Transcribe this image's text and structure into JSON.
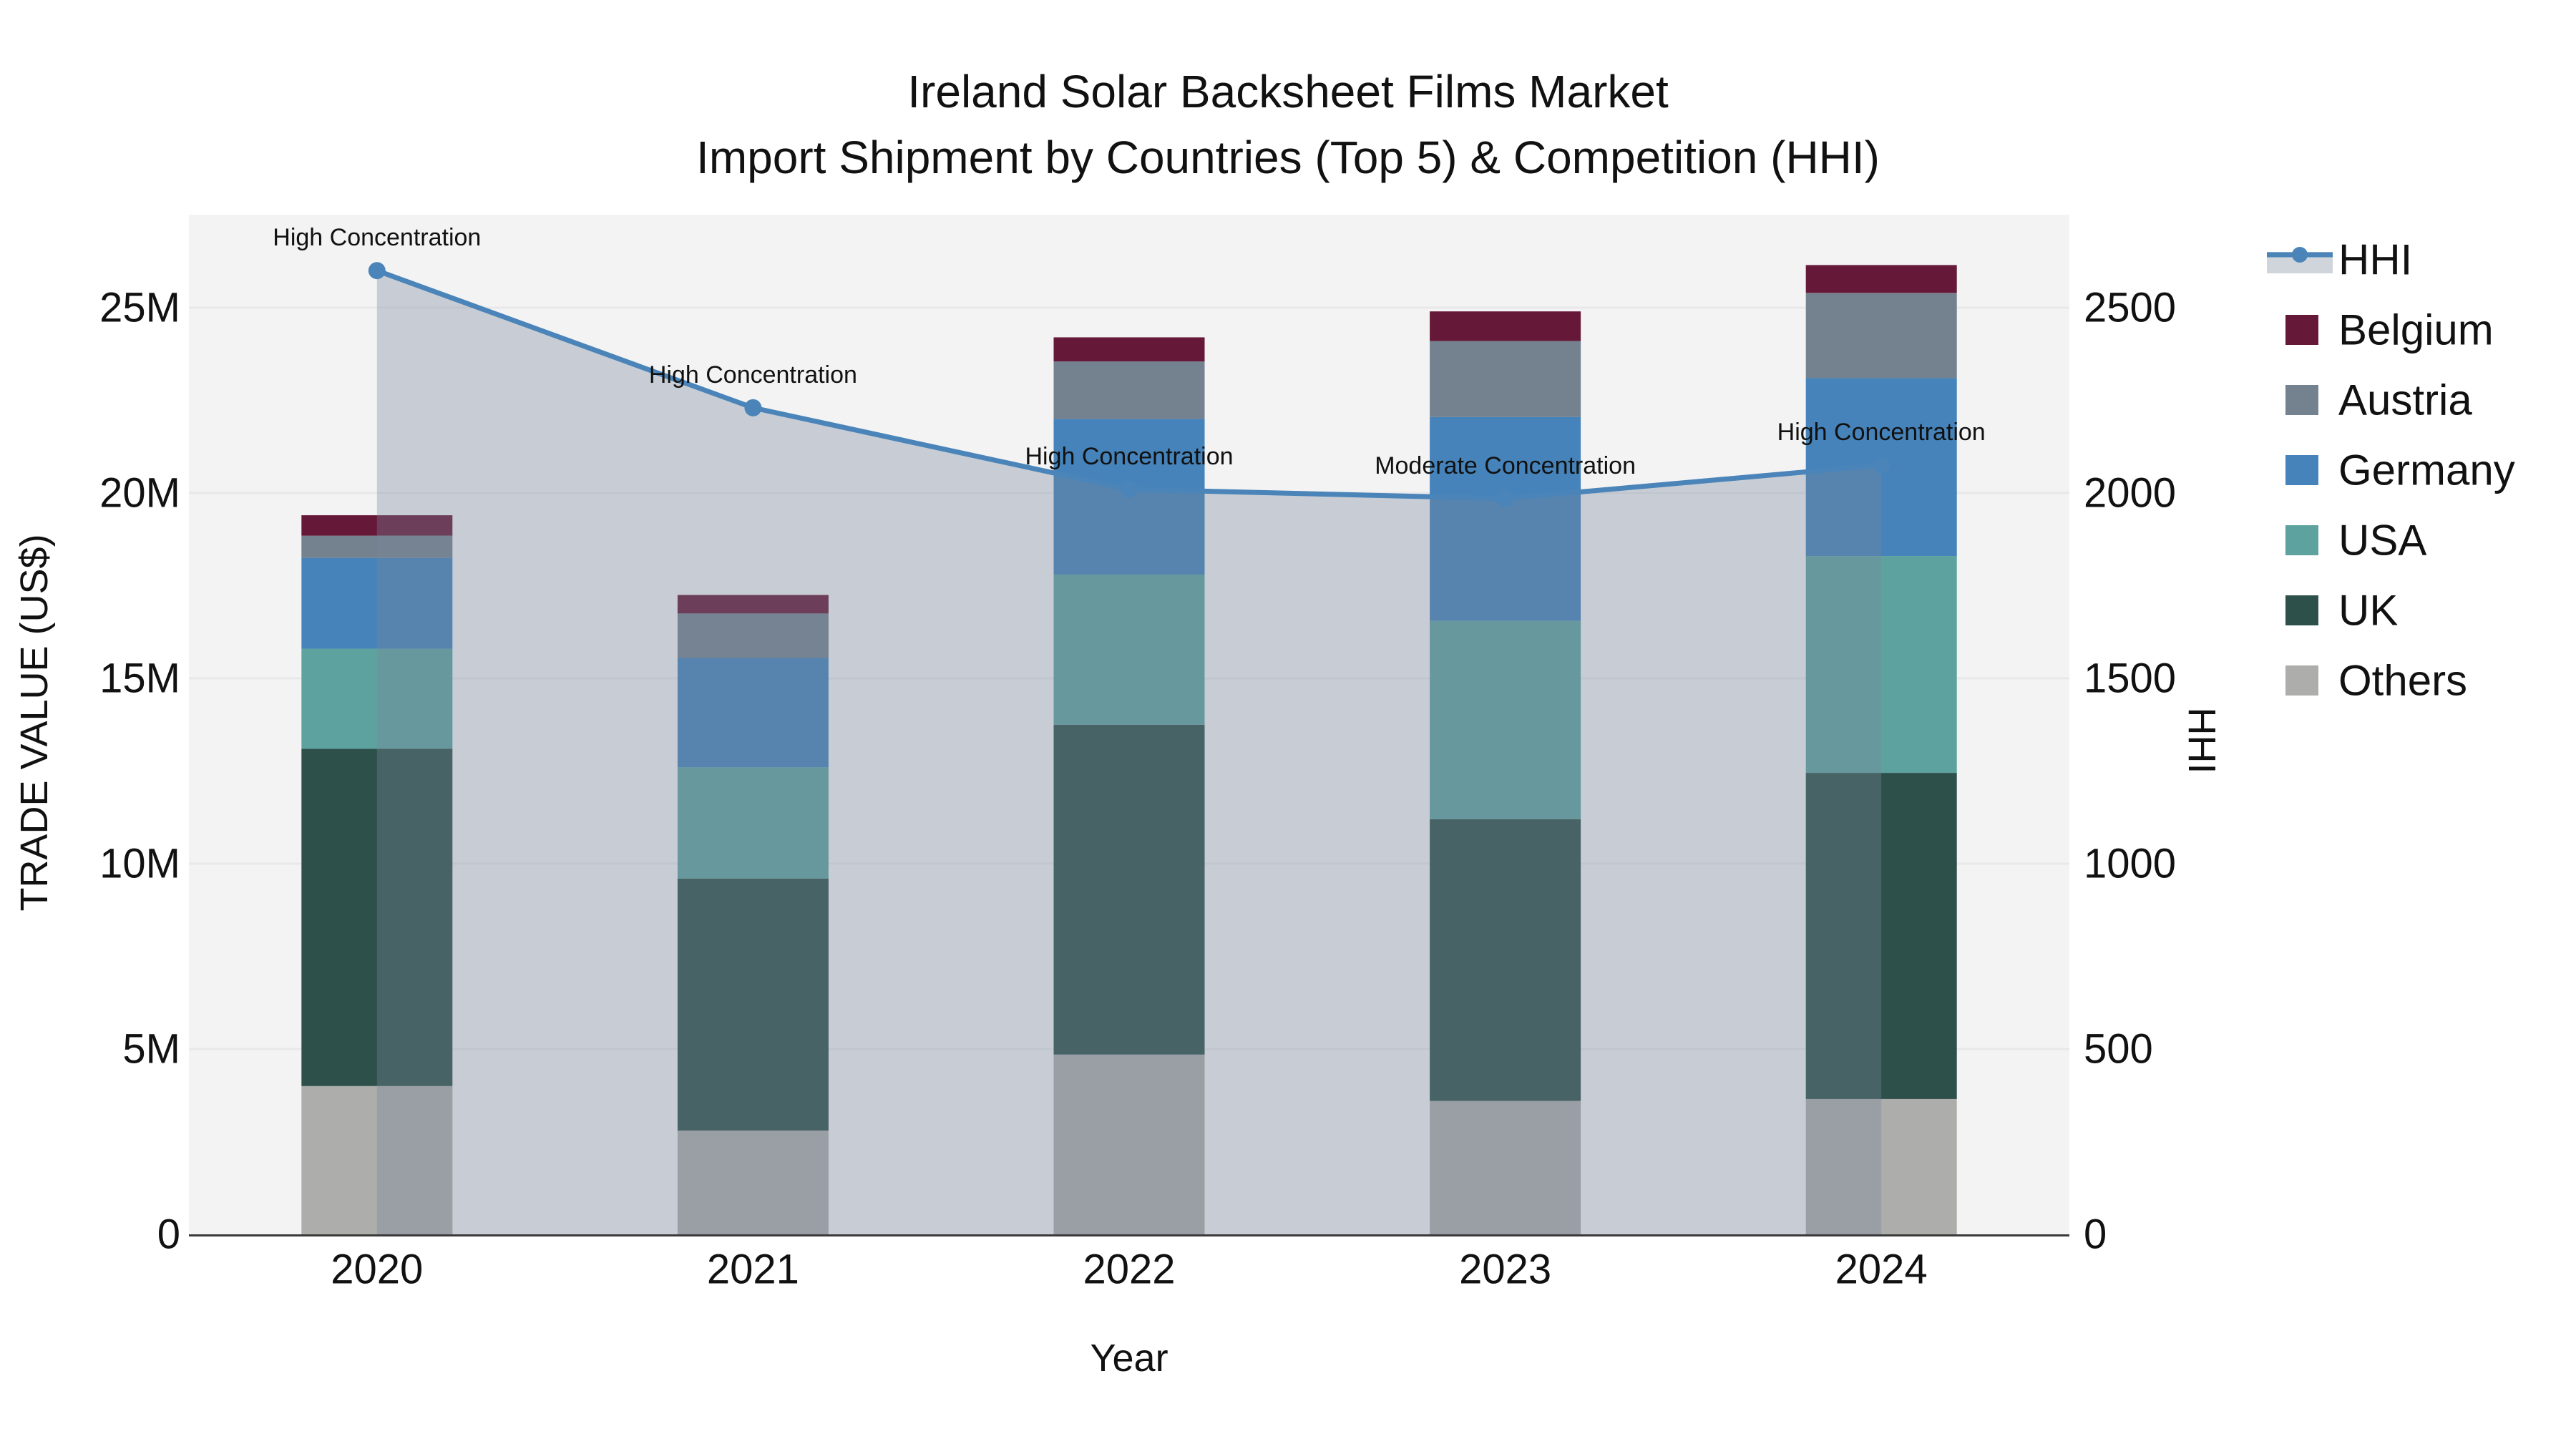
{
  "title": {
    "line1": "Ireland Solar Backsheet Films Market",
    "line2": "Import Shipment by Countries (Top 5) & Competition (HHI)"
  },
  "axes": {
    "x": {
      "label": "Year",
      "categories": [
        "2020",
        "2021",
        "2022",
        "2023",
        "2024"
      ]
    },
    "y_left": {
      "label": "TRADE VALUE (US$)",
      "ticks": [
        {
          "v": 0,
          "t": "0"
        },
        {
          "v": 5,
          "t": "5M"
        },
        {
          "v": 10,
          "t": "10M"
        },
        {
          "v": 15,
          "t": "15M"
        },
        {
          "v": 20,
          "t": "20M"
        },
        {
          "v": 25,
          "t": "25M"
        }
      ],
      "range": [
        0,
        27.5
      ]
    },
    "y_right": {
      "label": "HHI",
      "ticks": [
        {
          "v": 0,
          "t": "0"
        },
        {
          "v": 500,
          "t": "500"
        },
        {
          "v": 1000,
          "t": "1000"
        },
        {
          "v": 1500,
          "t": "1500"
        },
        {
          "v": 2000,
          "t": "2000"
        },
        {
          "v": 2500,
          "t": "2500"
        }
      ],
      "range": [
        0,
        2750
      ]
    }
  },
  "legend": {
    "items": [
      {
        "label": "HHI",
        "type": "line",
        "color": "#4a84b8"
      },
      {
        "label": "Belgium",
        "type": "swatch",
        "color": "#661838"
      },
      {
        "label": "Austria",
        "type": "swatch",
        "color": "#74818f"
      },
      {
        "label": "Germany",
        "type": "swatch",
        "color": "#4583ba"
      },
      {
        "label": "USA",
        "type": "swatch",
        "color": "#5da29e"
      },
      {
        "label": "UK",
        "type": "swatch",
        "color": "#2e504b"
      },
      {
        "label": "Others",
        "type": "swatch",
        "color": "#adadab"
      }
    ]
  },
  "chart_data": {
    "type": "combo: stacked-bar + line",
    "title": "Ireland Solar Backsheet Films Market — Import Shipment by Countries (Top 5) & Competition (HHI)",
    "categories": [
      "2020",
      "2021",
      "2022",
      "2023",
      "2024"
    ],
    "value_unit": "US$ millions (left axis), HHI index (right axis)",
    "series": [
      {
        "name": "Others",
        "color": "#adadab",
        "values": [
          4.0,
          2.8,
          4.85,
          3.6,
          3.65
        ]
      },
      {
        "name": "UK",
        "color": "#2e504b",
        "values": [
          9.1,
          6.8,
          8.9,
          7.6,
          8.8
        ]
      },
      {
        "name": "USA",
        "color": "#5da29e",
        "values": [
          2.7,
          3.0,
          4.05,
          5.35,
          5.85
        ]
      },
      {
        "name": "Germany",
        "color": "#4583ba",
        "values": [
          2.45,
          2.95,
          4.2,
          5.5,
          4.8
        ]
      },
      {
        "name": "Austria",
        "color": "#74818f",
        "values": [
          0.6,
          1.2,
          1.55,
          2.05,
          2.3
        ]
      },
      {
        "name": "Belgium",
        "color": "#661838",
        "values": [
          0.55,
          0.5,
          0.65,
          0.8,
          0.75
        ]
      }
    ],
    "bar_totals": [
      19.4,
      17.25,
      24.2,
      24.9,
      26.15
    ],
    "line_series": {
      "name": "HHI",
      "color": "#4a84b8",
      "fill_color": "rgba(120,135,155,0.35)",
      "values": [
        2600,
        2230,
        2010,
        1985,
        2075
      ]
    },
    "annotations": [
      "High Concentration",
      "High Concentration",
      "High Concentration",
      "Moderate Concentration",
      "High Concentration"
    ],
    "layout_hints": {
      "grid": true,
      "legend_position": "right",
      "stack_order_bottom_to_top": [
        "Others",
        "UK",
        "USA",
        "Germany",
        "Austria",
        "Belgium"
      ]
    }
  },
  "colors": {
    "figure_bg": "#ffffff",
    "plot_bg": "#f3f3f4",
    "grid": "#e8e8ea",
    "axis_line": "#3a3a3a",
    "text": "#111111"
  }
}
